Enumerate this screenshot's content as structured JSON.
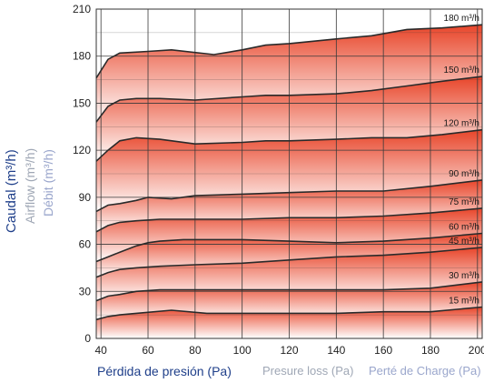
{
  "chart_data": {
    "type": "area",
    "ylabel": [
      "Caudal (m³/h)",
      "Airflow (m³/h)",
      "Débit (m³/h)"
    ],
    "xlabel": [
      "Pérdida de presión (Pa)",
      "Presure loss (Pa)",
      "Perté de Charge (Pa)"
    ],
    "xlim": [
      38,
      202
    ],
    "ylim": [
      0,
      210
    ],
    "x_ticks": [
      40,
      60,
      80,
      100,
      120,
      140,
      160,
      180,
      200
    ],
    "y_ticks": [
      0,
      30,
      60,
      90,
      120,
      150,
      180,
      210
    ],
    "grid": true,
    "colors": {
      "top": "#e8452a",
      "bottom": "#ffffff",
      "line": "#2a2a2a",
      "grid": "#3a3a3a"
    },
    "series": [
      {
        "name": "180 m³/h",
        "x": [
          38,
          43,
          48,
          60,
          70,
          88,
          100,
          110,
          120,
          140,
          155,
          170,
          185,
          202
        ],
        "y": [
          166,
          178,
          182,
          183,
          184,
          181,
          184,
          187,
          188,
          191,
          193,
          197,
          198,
          200
        ]
      },
      {
        "name": "150 m³/h",
        "x": [
          38,
          43,
          48,
          55,
          65,
          80,
          100,
          110,
          120,
          140,
          155,
          170,
          185,
          202
        ],
        "y": [
          138,
          148,
          152,
          153,
          153,
          152,
          154,
          155,
          155,
          156,
          158,
          161,
          164,
          167
        ]
      },
      {
        "name": "120 m³/h",
        "x": [
          38,
          43,
          48,
          55,
          65,
          80,
          100,
          110,
          120,
          140,
          155,
          170,
          185,
          202
        ],
        "y": [
          113,
          120,
          126,
          128,
          127,
          124,
          125,
          126,
          126,
          127,
          128,
          128,
          130,
          133
        ]
      },
      {
        "name": "90 m³/h",
        "x": [
          38,
          43,
          48,
          55,
          60,
          70,
          80,
          100,
          120,
          140,
          160,
          180,
          202
        ],
        "y": [
          81,
          85,
          86,
          88,
          90,
          89,
          91,
          92,
          93,
          94,
          94,
          97,
          101
        ]
      },
      {
        "name": "75 m³/h",
        "x": [
          38,
          43,
          48,
          55,
          65,
          80,
          100,
          120,
          140,
          160,
          180,
          202
        ],
        "y": [
          68,
          72,
          74,
          75,
          76,
          76,
          76,
          77,
          77,
          78,
          80,
          83
        ]
      },
      {
        "name": "60 m³/h",
        "x": [
          38,
          43,
          48,
          55,
          60,
          65,
          75,
          85,
          100,
          120,
          140,
          160,
          180,
          202
        ],
        "y": [
          49,
          52,
          55,
          59,
          61,
          62,
          63,
          63,
          63,
          62,
          61,
          62,
          64,
          67
        ]
      },
      {
        "name": "45 m³/h",
        "x": [
          38,
          43,
          48,
          55,
          65,
          80,
          100,
          120,
          140,
          160,
          180,
          202
        ],
        "y": [
          39,
          42,
          44,
          45,
          46,
          47,
          48,
          50,
          52,
          53,
          55,
          58
        ]
      },
      {
        "name": "30 m³/h",
        "x": [
          38,
          43,
          48,
          55,
          65,
          80,
          100,
          120,
          140,
          160,
          180,
          202
        ],
        "y": [
          24,
          27,
          28,
          30,
          31,
          31,
          31,
          31,
          31,
          31,
          32,
          36
        ]
      },
      {
        "name": "15 m³/h",
        "x": [
          38,
          43,
          48,
          55,
          70,
          85,
          100,
          120,
          140,
          160,
          180,
          202
        ],
        "y": [
          12,
          14,
          15,
          16,
          18,
          16,
          16,
          16,
          16,
          17,
          17,
          20
        ]
      }
    ]
  }
}
